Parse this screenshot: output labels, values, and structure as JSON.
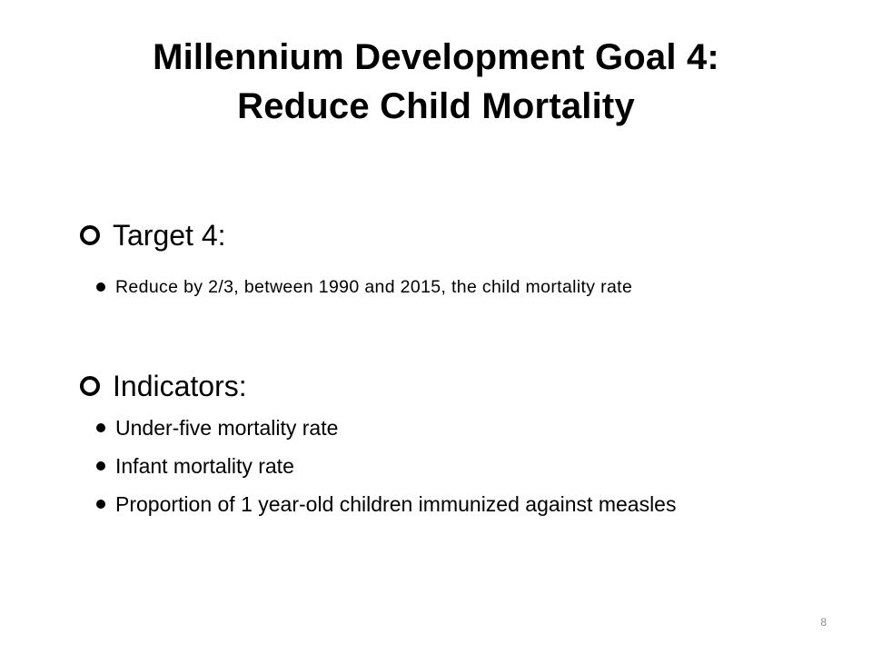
{
  "slide": {
    "title_line1": "Millennium Development Goal 4:",
    "title_line2": "Reduce Child Mortality",
    "target": {
      "heading": "Target 4:",
      "items": [
        "Reduce by 2/3, between 1990 and 2015, the child mortality rate"
      ]
    },
    "indicators": {
      "heading": "Indicators:",
      "items": [
        "Under-five mortality rate",
        "Infant mortality rate",
        "Proportion of 1 year-old children immunized against measles"
      ]
    },
    "page_number": "8"
  }
}
